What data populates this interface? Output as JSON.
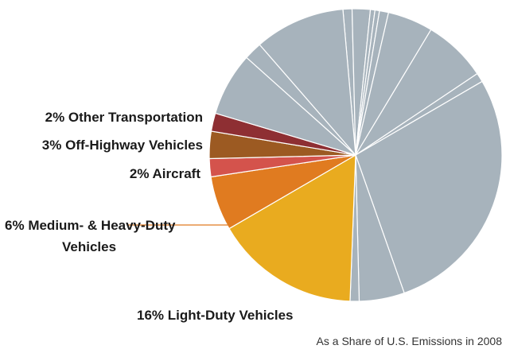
{
  "chart_data": {
    "type": "pie",
    "note": "As a Share of U.S. Emissions in 2008",
    "categories": [
      null,
      null,
      null,
      null,
      null,
      null,
      null,
      null,
      null,
      null,
      null,
      "Light-Duty Vehicles",
      "Medium- & Heavy-Duty Vehicles",
      "Aircraft",
      "Off-Highway Vehicles",
      "Other Transportation",
      null,
      null,
      null
    ],
    "values": [
      1,
      2,
      0.5,
      0.5,
      1,
      5,
      7,
      1,
      28,
      5,
      1,
      16,
      6,
      2,
      3,
      2,
      7,
      2,
      10
    ],
    "value_labels": [
      null,
      null,
      null,
      null,
      null,
      null,
      null,
      null,
      null,
      null,
      null,
      "16%",
      "6%",
      "2%",
      "3%",
      "2%",
      null,
      null,
      null
    ],
    "colors": [
      "#a7b3bc",
      "#a7b3bc",
      "#a7b3bc",
      "#a7b3bc",
      "#a7b3bc",
      "#a7b3bc",
      "#a7b3bc",
      "#a7b3bc",
      "#a7b3bc",
      "#a7b3bc",
      "#a7b3bc",
      "#e9ab1f",
      "#e07b20",
      "#d4534c",
      "#9c5a22",
      "#8e2f33",
      "#a7b3bc",
      "#a7b3bc",
      "#a7b3bc"
    ]
  }
}
